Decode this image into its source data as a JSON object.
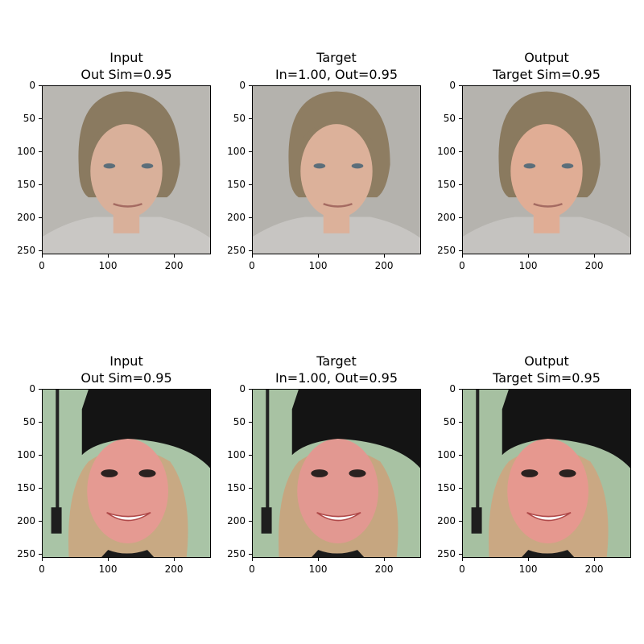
{
  "axis": {
    "y_ticks": [
      "0",
      "50",
      "100",
      "150",
      "200",
      "250"
    ],
    "x_ticks": [
      "0",
      "100",
      "200"
    ]
  },
  "rows": [
    {
      "panels": [
        {
          "title1": "Input",
          "title2": "Out Sim=0.95",
          "bg": "#b9b7b2",
          "skin": "#d9b09a",
          "hair": "#8a7a60",
          "shirt": "#c9c7c4"
        },
        {
          "title1": "Target",
          "title2": "In=1.00, Out=0.95",
          "bg": "#b4b2ad",
          "skin": "#dcb19a",
          "hair": "#8e7d62",
          "shirt": "#c7c5c2"
        },
        {
          "title1": "Output",
          "title2": "Target Sim=0.95",
          "bg": "#b5b3ae",
          "skin": "#e0ad95",
          "hair": "#8a7a5f",
          "shirt": "#c5c3c0"
        }
      ]
    },
    {
      "panels": [
        {
          "title1": "Input",
          "title2": "Out Sim=0.95",
          "bg": "#a9c4a6",
          "skin": "#e59a92",
          "hair": "#c8a983",
          "shirt": "#1a1a1a"
        },
        {
          "title1": "Target",
          "title2": "In=1.00, Out=0.95",
          "bg": "#a8c2a3",
          "skin": "#e29891",
          "hair": "#c6a680",
          "shirt": "#1a1a1a"
        },
        {
          "title1": "Output",
          "title2": "Target Sim=0.95",
          "bg": "#a6c0a1",
          "skin": "#e6988f",
          "hair": "#caa883",
          "shirt": "#1a1a1a"
        }
      ]
    }
  ]
}
